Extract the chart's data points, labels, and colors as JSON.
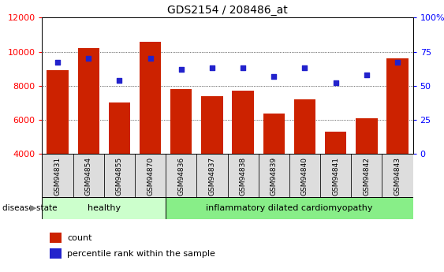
{
  "title": "GDS2154 / 208486_at",
  "samples": [
    "GSM94831",
    "GSM94854",
    "GSM94855",
    "GSM94870",
    "GSM94836",
    "GSM94837",
    "GSM94838",
    "GSM94839",
    "GSM94840",
    "GSM94841",
    "GSM94842",
    "GSM94843"
  ],
  "counts": [
    8900,
    10200,
    7000,
    10600,
    7800,
    7400,
    7700,
    6350,
    7200,
    5300,
    6100,
    9600
  ],
  "percentiles": [
    67,
    70,
    54,
    70,
    62,
    63,
    63,
    57,
    63,
    52,
    58,
    67
  ],
  "bar_color": "#cc2200",
  "dot_color": "#2222cc",
  "ylim_left": [
    4000,
    12000
  ],
  "ylim_right": [
    0,
    100
  ],
  "yticks_left": [
    4000,
    6000,
    8000,
    10000,
    12000
  ],
  "yticks_right": [
    0,
    25,
    50,
    75,
    100
  ],
  "ytick_labels_right": [
    "0",
    "25",
    "50",
    "75",
    "100%"
  ],
  "healthy_count": 4,
  "healthy_label": "healthy",
  "disease_label": "inflammatory dilated cardiomyopathy",
  "healthy_color": "#ccffcc",
  "disease_color": "#88ee88",
  "disease_state_label": "disease state",
  "legend_count": "count",
  "legend_percentile": "percentile rank within the sample",
  "bg_color": "#ffffff",
  "bar_bottom": 4000,
  "label_bg_color": "#dddddd"
}
